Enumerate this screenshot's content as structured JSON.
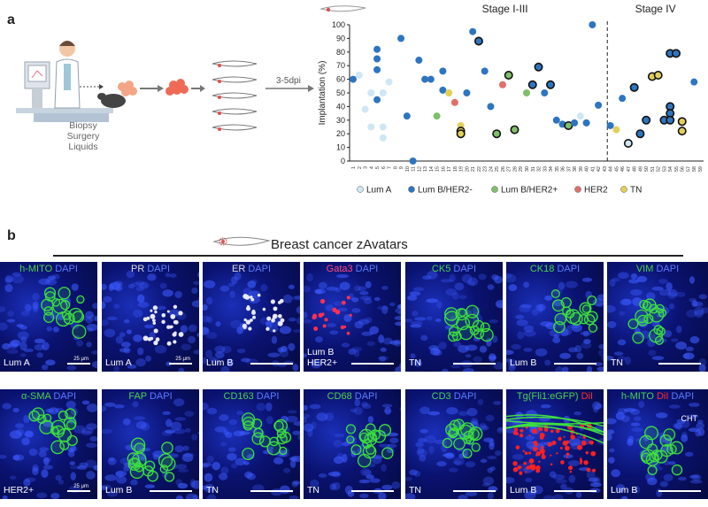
{
  "panel_a_label": "a",
  "panel_b_label": "b",
  "workflow": {
    "biopsy_lines": [
      "Biopsy",
      "Surgery",
      "Liquids"
    ],
    "days_label": "3-5dpi"
  },
  "colors": {
    "lum_a": "#cfe6f5",
    "lum_b_her2neg": "#2e75c0",
    "lum_b_her2pos": "#7fbf6a",
    "her2": "#e0706b",
    "tn": "#e2cf5a"
  },
  "chart_data": {
    "type": "scatter",
    "ylabel": "Implantation (%)",
    "ylim": [
      0,
      100
    ],
    "yticks": [
      0,
      10,
      20,
      30,
      40,
      50,
      60,
      70,
      80,
      90,
      100
    ],
    "stage_labels": [
      "Stage I-III",
      "Stage IV"
    ],
    "x_labels": [
      "1",
      "2",
      "3",
      "4",
      "5",
      "6",
      "7",
      "8",
      "9",
      "10",
      "11",
      "12",
      "13",
      "14",
      "15",
      "16",
      "17",
      "18",
      "19",
      "20",
      "21",
      "22",
      "23",
      "24",
      "25",
      "26",
      "27",
      "28",
      "29",
      "30",
      "31",
      "32",
      "33",
      "34",
      "35",
      "36",
      "37",
      "38",
      "39",
      "40",
      "41",
      "42",
      "43",
      "44",
      "45",
      "46",
      "47",
      "48",
      "49",
      "50",
      "51",
      "52",
      "53",
      "54",
      "55",
      "56",
      "57",
      "58",
      "59"
    ],
    "legend": [
      {
        "name": "Lum A",
        "color": "#cfe6f5"
      },
      {
        "name": "Lum B/HER2-",
        "color": "#2e75c0"
      },
      {
        "name": "Lum B/HER2+",
        "color": "#7fbf6a"
      },
      {
        "name": "HER2",
        "color": "#e0706b"
      },
      {
        "name": "TN",
        "color": "#e2cf5a"
      }
    ],
    "points": [
      {
        "x": 1,
        "y": 60,
        "c": "lum_b_her2neg"
      },
      {
        "x": 2,
        "y": 63,
        "c": "lum_a"
      },
      {
        "x": 3,
        "y": 38,
        "c": "lum_a"
      },
      {
        "x": 4,
        "y": 50,
        "c": "lum_a"
      },
      {
        "x": 4,
        "y": 25,
        "c": "lum_a"
      },
      {
        "x": 5,
        "y": 82,
        "c": "lum_b_her2neg"
      },
      {
        "x": 5,
        "y": 75,
        "c": "lum_b_her2neg"
      },
      {
        "x": 5,
        "y": 67,
        "c": "lum_b_her2neg"
      },
      {
        "x": 5,
        "y": 45,
        "c": "lum_b_her2neg"
      },
      {
        "x": 6,
        "y": 50,
        "c": "lum_a"
      },
      {
        "x": 6,
        "y": 25,
        "c": "lum_a"
      },
      {
        "x": 6,
        "y": 17,
        "c": "lum_a"
      },
      {
        "x": 7,
        "y": 58,
        "c": "lum_a"
      },
      {
        "x": 9,
        "y": 90,
        "c": "lum_b_her2neg"
      },
      {
        "x": 10,
        "y": 33,
        "c": "lum_b_her2neg"
      },
      {
        "x": 11,
        "y": 0,
        "c": "lum_b_her2neg"
      },
      {
        "x": 12,
        "y": 74,
        "c": "lum_b_her2neg"
      },
      {
        "x": 13,
        "y": 60,
        "c": "lum_b_her2neg"
      },
      {
        "x": 14,
        "y": 60,
        "c": "lum_b_her2neg"
      },
      {
        "x": 15,
        "y": 33,
        "c": "lum_b_her2pos"
      },
      {
        "x": 16,
        "y": 66,
        "c": "lum_b_her2neg"
      },
      {
        "x": 16,
        "y": 52,
        "c": "lum_b_her2neg"
      },
      {
        "x": 17,
        "y": 50,
        "c": "tn"
      },
      {
        "x": 18,
        "y": 43,
        "c": "her2"
      },
      {
        "x": 19,
        "y": 26,
        "c": "tn"
      },
      {
        "x": 19,
        "y": 22,
        "c": "tn",
        "bold": true
      },
      {
        "x": 19,
        "y": 20,
        "c": "tn",
        "bold": true
      },
      {
        "x": 20,
        "y": 50,
        "c": "lum_b_her2neg"
      },
      {
        "x": 21,
        "y": 95,
        "c": "lum_b_her2neg"
      },
      {
        "x": 22,
        "y": 88,
        "c": "lum_b_her2neg",
        "bold": true
      },
      {
        "x": 23,
        "y": 66,
        "c": "lum_b_her2neg"
      },
      {
        "x": 24,
        "y": 40,
        "c": "lum_b_her2neg"
      },
      {
        "x": 25,
        "y": 20,
        "c": "lum_b_her2pos",
        "bold": true
      },
      {
        "x": 26,
        "y": 56,
        "c": "her2"
      },
      {
        "x": 27,
        "y": 63,
        "c": "lum_b_her2pos",
        "bold": true
      },
      {
        "x": 28,
        "y": 23,
        "c": "lum_b_her2pos",
        "bold": true
      },
      {
        "x": 30,
        "y": 50,
        "c": "lum_b_her2pos"
      },
      {
        "x": 31,
        "y": 56,
        "c": "lum_b_her2neg",
        "bold": true
      },
      {
        "x": 32,
        "y": 69,
        "c": "lum_b_her2neg",
        "bold": true
      },
      {
        "x": 33,
        "y": 50,
        "c": "lum_b_her2neg"
      },
      {
        "x": 34,
        "y": 56,
        "c": "lum_b_her2neg",
        "bold": true
      },
      {
        "x": 35,
        "y": 30,
        "c": "lum_b_her2neg"
      },
      {
        "x": 36,
        "y": 27,
        "c": "lum_b_her2neg"
      },
      {
        "x": 37,
        "y": 26,
        "c": "lum_b_her2pos",
        "bold": true
      },
      {
        "x": 38,
        "y": 28,
        "c": "lum_b_her2neg"
      },
      {
        "x": 39,
        "y": 33,
        "c": "lum_a"
      },
      {
        "x": 40,
        "y": 28,
        "c": "lum_b_her2neg"
      },
      {
        "x": 41,
        "y": 100,
        "c": "lum_b_her2neg"
      },
      {
        "x": 42,
        "y": 41,
        "c": "lum_b_her2neg"
      },
      {
        "x": 44,
        "y": 26,
        "c": "lum_b_her2neg"
      },
      {
        "x": 45,
        "y": 23,
        "c": "tn"
      },
      {
        "x": 46,
        "y": 46,
        "c": "lum_b_her2neg"
      },
      {
        "x": 47,
        "y": 13,
        "c": "lum_a",
        "bold": true
      },
      {
        "x": 48,
        "y": 54,
        "c": "lum_b_her2neg",
        "bold": true
      },
      {
        "x": 49,
        "y": 20,
        "c": "lum_b_her2neg",
        "bold": true
      },
      {
        "x": 50,
        "y": 30,
        "c": "lum_b_her2neg",
        "bold": true
      },
      {
        "x": 51,
        "y": 62,
        "c": "tn",
        "bold": true
      },
      {
        "x": 52,
        "y": 63,
        "c": "tn",
        "bold": true
      },
      {
        "x": 53,
        "y": 30,
        "c": "lum_b_her2neg",
        "bold": true
      },
      {
        "x": 54,
        "y": 79,
        "c": "lum_b_her2neg",
        "bold": true
      },
      {
        "x": 54,
        "y": 40,
        "c": "lum_b_her2neg",
        "bold": true
      },
      {
        "x": 54,
        "y": 35,
        "c": "lum_b_her2neg",
        "bold": true
      },
      {
        "x": 54,
        "y": 30,
        "c": "lum_b_her2neg",
        "bold": true
      },
      {
        "x": 55,
        "y": 79,
        "c": "lum_b_her2neg",
        "bold": true
      },
      {
        "x": 56,
        "y": 29,
        "c": "tn",
        "bold": true
      },
      {
        "x": 56,
        "y": 22,
        "c": "tn",
        "bold": true
      },
      {
        "x": 58,
        "y": 58,
        "c": "lum_b_her2neg"
      }
    ],
    "stage_divider_x": 43.5
  },
  "panel_b": {
    "title": "Breast cancer zAvatars",
    "row1": [
      {
        "h1": "h-MITO",
        "c1": "#4dd24d",
        "h2": " DAPI",
        "c2": "#5a7cff",
        "label": [
          "Lum A"
        ],
        "scale": "25 μm"
      },
      {
        "h1": "PR",
        "c1": "#dddddd",
        "h2": " DAPI",
        "c2": "#5a7cff",
        "label": [
          "Lum A"
        ],
        "scale": "25 μm"
      },
      {
        "h1": "ER",
        "c1": "#dddddd",
        "h2": " DAPI",
        "c2": "#5a7cff",
        "label": [
          "Lum B"
        ],
        "scale": ""
      },
      {
        "h1": "Gata3",
        "c1": "#ff4b7a",
        "h2": " DAPI",
        "c2": "#5a7cff",
        "label": [
          "Lum B",
          "HER2+"
        ],
        "scale": ""
      },
      {
        "h1": "CK5",
        "c1": "#4dd24d",
        "h2": " DAPI",
        "c2": "#5a7cff",
        "label": [
          "TN"
        ],
        "scale": ""
      },
      {
        "h1": "CK18",
        "c1": "#4dd24d",
        "h2": " DAPI",
        "c2": "#5a7cff",
        "label": [
          "Lum B"
        ],
        "scale": ""
      },
      {
        "h1": "VIM",
        "c1": "#4dd24d",
        "h2": " DAPI",
        "c2": "#5a7cff",
        "label": [
          "TN"
        ],
        "scale": ""
      }
    ],
    "row2": [
      {
        "h1": "α-SMA",
        "c1": "#4dd24d",
        "h2": " DAPI",
        "c2": "#5a7cff",
        "label": [
          "HER2+"
        ],
        "scale": "25 μm"
      },
      {
        "h1": "FAP",
        "c1": "#4dd24d",
        "h2": " DAPI",
        "c2": "#5a7cff",
        "label": [
          "Lum B"
        ],
        "scale": ""
      },
      {
        "h1": "CD163",
        "c1": "#4dd24d",
        "h2": " DAPI",
        "c2": "#5a7cff",
        "label": [
          "TN"
        ],
        "scale": ""
      },
      {
        "h1": "CD68",
        "c1": "#4dd24d",
        "h2": " DAPI",
        "c2": "#5a7cff",
        "label": [
          "TN"
        ],
        "scale": ""
      },
      {
        "h1": "CD3",
        "c1": "#4dd24d",
        "h2": " DAPI",
        "c2": "#5a7cff",
        "label": [
          "TN"
        ],
        "scale": ""
      },
      {
        "h1": "Tg(Fli1:eGFP)",
        "c1": "#4dd24d",
        "h2": " DiI",
        "c2": "#ff3030",
        "label": [
          "Lum B"
        ],
        "scale": ""
      },
      {
        "h1": "h-MITO",
        "c1": "#4dd24d",
        "h2": " DiI",
        "c2": "#ff3030",
        "h3": " DAPI",
        "c3": "#5a7cff",
        "label": [
          "Lum B"
        ],
        "scale": "",
        "extra": "CHT"
      }
    ]
  }
}
